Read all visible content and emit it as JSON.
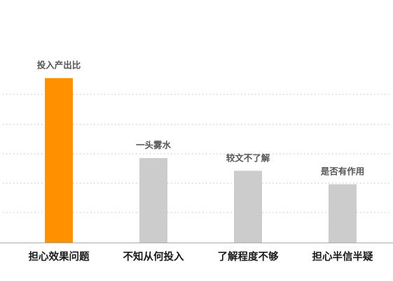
{
  "chart_data": {
    "type": "bar",
    "categories": [
      "担心效果问题",
      "不知从何投入",
      "了解程度不够",
      "担心半信半疑"
    ],
    "bar_labels": [
      "投入产出比",
      "一头雾水",
      "较文不了解",
      "是否有作用"
    ],
    "values": [
      220,
      113,
      96,
      78
    ],
    "ylim": [
      0,
      230
    ],
    "grid": true,
    "legend": "none",
    "colors": {
      "highlight": "#FF9100",
      "default": "#CCCCCC",
      "grid": "#BFBFBF",
      "axis": "#AAAAAA"
    },
    "highlight_index": 0
  }
}
